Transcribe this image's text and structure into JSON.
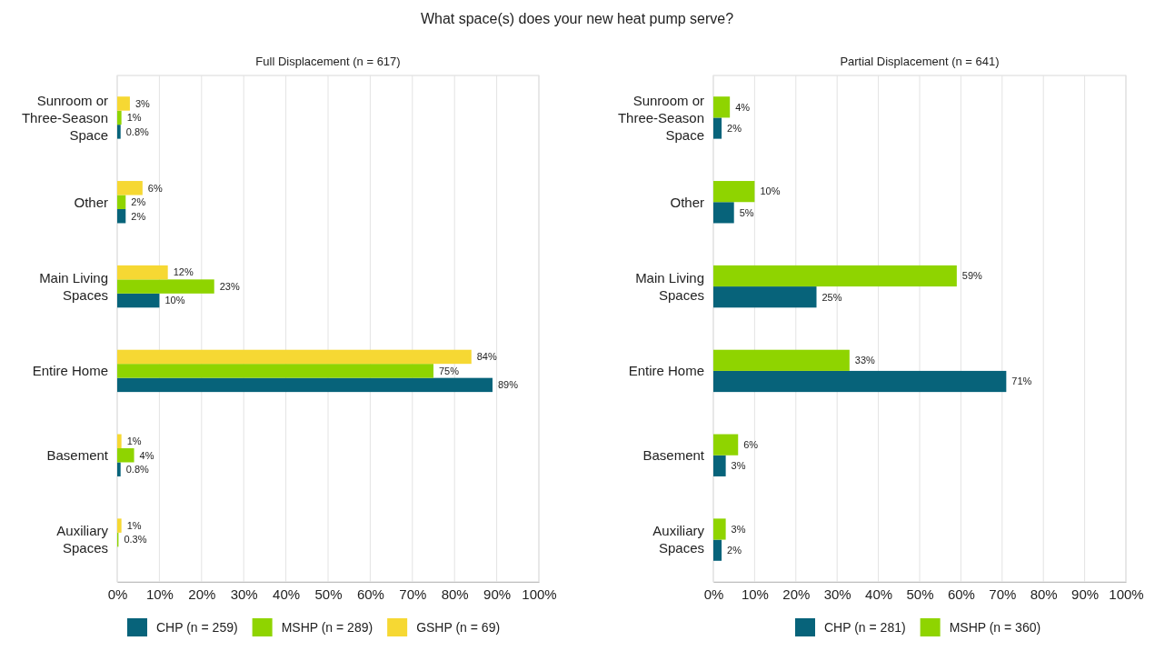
{
  "chart_data": [
    {
      "type": "bar",
      "orientation": "horizontal",
      "title": "What space(s) does your new heat pump serve?",
      "subtitle": "Full Displacement (n = 617)",
      "categories": [
        "Sunroom or Three-Season Space",
        "Other",
        "Main Living Spaces",
        "Entire Home",
        "Basement",
        "Auxiliary Spaces"
      ],
      "series": [
        {
          "name": "CHP (n = 259)",
          "color": "#07637a",
          "values": [
            0.8,
            2,
            10,
            89,
            0.8,
            null
          ],
          "value_labels": [
            "0.8%",
            "2%",
            "10%",
            "89%",
            "0.8%",
            null
          ]
        },
        {
          "name": "MSHP (n = 289)",
          "color": "#8fd400",
          "values": [
            1,
            2,
            23,
            75,
            4,
            0.3
          ],
          "value_labels": [
            "1%",
            "2%",
            "23%",
            "75%",
            "4%",
            "0.3%"
          ]
        },
        {
          "name": "GSHP (n = 69)",
          "color": "#f6d833",
          "values": [
            3,
            6,
            12,
            84,
            1,
            1
          ],
          "value_labels": [
            "3%",
            "6%",
            "12%",
            "84%",
            "1%",
            "1%"
          ]
        }
      ],
      "xlim": [
        0,
        100
      ],
      "xticks": [
        {
          "value": 0,
          "label": "0%"
        },
        {
          "value": 10,
          "label": "10%"
        },
        {
          "value": 20,
          "label": "20%"
        },
        {
          "value": 30,
          "label": "30%"
        },
        {
          "value": 40,
          "label": "40%"
        },
        {
          "value": 50,
          "label": "50%"
        },
        {
          "value": 60,
          "label": "60%"
        },
        {
          "value": 70,
          "label": "70%"
        },
        {
          "value": 80,
          "label": "80%"
        },
        {
          "value": 90,
          "label": "90%"
        },
        {
          "value": 100,
          "label": "100%"
        }
      ],
      "grid": "x",
      "legend": "bottom"
    },
    {
      "type": "bar",
      "orientation": "horizontal",
      "subtitle": "Partial Displacement (n = 641)",
      "categories": [
        "Sunroom or Three-Season Space",
        "Other",
        "Main Living Spaces",
        "Entire Home",
        "Basement",
        "Auxiliary Spaces"
      ],
      "series": [
        {
          "name": "CHP (n = 281)",
          "color": "#07637a",
          "values": [
            2,
            5,
            25,
            71,
            3,
            2
          ],
          "value_labels": [
            "2%",
            "5%",
            "25%",
            "71%",
            "3%",
            "2%"
          ]
        },
        {
          "name": "MSHP (n = 360)",
          "color": "#8fd400",
          "values": [
            4,
            10,
            59,
            33,
            6,
            3
          ],
          "value_labels": [
            "4%",
            "10%",
            "59%",
            "33%",
            "6%",
            "3%"
          ]
        }
      ],
      "xlim": [
        0,
        100
      ],
      "xticks": [
        {
          "value": 0,
          "label": "0%"
        },
        {
          "value": 10,
          "label": "10%"
        },
        {
          "value": 20,
          "label": "20%"
        },
        {
          "value": 30,
          "label": "30%"
        },
        {
          "value": 40,
          "label": "40%"
        },
        {
          "value": 50,
          "label": "50%"
        },
        {
          "value": 60,
          "label": "60%"
        },
        {
          "value": 70,
          "label": "70%"
        },
        {
          "value": 80,
          "label": "80%"
        },
        {
          "value": 90,
          "label": "90%"
        },
        {
          "value": 100,
          "label": "100%"
        }
      ],
      "grid": "x",
      "legend": "bottom"
    }
  ]
}
